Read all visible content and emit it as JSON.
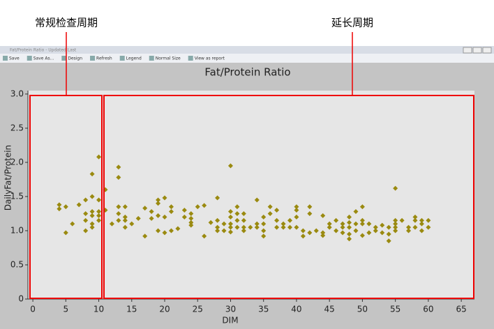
{
  "annotations": [
    "常规检查周期",
    "延长周期"
  ],
  "ui": {
    "window_title": "Fat/Protein Ratio - Updated Last",
    "toolbar": [
      "Save",
      "Save As...",
      "Design",
      "Refresh",
      "Legend",
      "Normal Size",
      "View as report"
    ]
  },
  "chart_data": {
    "type": "scatter",
    "title": "Fat/Protein Ratio",
    "x_label": "DIM",
    "y_label": "DailyFat/Protein",
    "color": "#9a8a10",
    "x": [
      4,
      4,
      5,
      5,
      6,
      7,
      8,
      8,
      8,
      8,
      9,
      9,
      9,
      9,
      9,
      9,
      10,
      10,
      10,
      10,
      10,
      11,
      11,
      12,
      13,
      13,
      13,
      13,
      13,
      14,
      14,
      14,
      14,
      15,
      16,
      17,
      17,
      18,
      18,
      19,
      19,
      19,
      19,
      20,
      20,
      20,
      21,
      21,
      21,
      22,
      23,
      23,
      24,
      24,
      24,
      24,
      25,
      26,
      26,
      27,
      28,
      28,
      28,
      28,
      29,
      29,
      30,
      30,
      30,
      30,
      30,
      30,
      31,
      31,
      31,
      31,
      32,
      32,
      32,
      32,
      33,
      34,
      34,
      34,
      35,
      35,
      35,
      35,
      36,
      36,
      37,
      37,
      37,
      38,
      38,
      39,
      39,
      40,
      40,
      40,
      40,
      41,
      41,
      42,
      42,
      42,
      43,
      44,
      44,
      44,
      45,
      45,
      46,
      46,
      47,
      47,
      47,
      48,
      48,
      48,
      48,
      48,
      49,
      49,
      49,
      50,
      50,
      50,
      50,
      51,
      51,
      52,
      52,
      53,
      53,
      54,
      54,
      54,
      55,
      55,
      55,
      55,
      55,
      56,
      57,
      57,
      58,
      58,
      58,
      59,
      59,
      59,
      60,
      60
    ],
    "y": [
      1.38,
      1.32,
      1.35,
      0.97,
      1.1,
      1.38,
      1.45,
      1.25,
      1.15,
      1.0,
      1.5,
      1.28,
      1.22,
      1.1,
      1.05,
      1.83,
      2.08,
      1.45,
      1.28,
      1.22,
      1.15,
      1.6,
      1.3,
      1.1,
      1.93,
      1.78,
      1.35,
      1.25,
      1.15,
      1.35,
      1.2,
      1.15,
      1.05,
      1.1,
      1.18,
      1.33,
      0.92,
      1.28,
      1.18,
      1.45,
      1.4,
      1.22,
      1.0,
      1.48,
      1.2,
      0.97,
      1.35,
      1.28,
      1.0,
      1.03,
      1.2,
      1.3,
      1.25,
      1.18,
      1.12,
      1.08,
      1.35,
      1.37,
      0.92,
      1.12,
      1.48,
      1.15,
      1.05,
      1.0,
      1.1,
      1.0,
      1.95,
      1.28,
      1.2,
      1.1,
      1.05,
      0.98,
      1.35,
      1.25,
      1.15,
      1.05,
      1.25,
      1.15,
      1.05,
      1.0,
      1.05,
      1.45,
      1.1,
      1.05,
      1.2,
      1.1,
      0.92,
      1.0,
      1.35,
      1.25,
      1.3,
      1.15,
      1.05,
      1.1,
      1.05,
      1.15,
      1.05,
      1.35,
      1.3,
      1.2,
      1.05,
      1.0,
      0.92,
      1.25,
      1.35,
      0.97,
      1.0,
      1.22,
      0.93,
      0.97,
      1.1,
      1.05,
      1.15,
      1.0,
      1.1,
      1.05,
      0.97,
      1.2,
      1.12,
      1.05,
      0.95,
      0.88,
      1.28,
      1.1,
      1.0,
      1.35,
      1.15,
      1.1,
      0.93,
      1.1,
      0.97,
      1.05,
      1.0,
      1.08,
      0.97,
      1.05,
      0.95,
      0.85,
      1.62,
      1.15,
      1.1,
      1.05,
      1.0,
      1.15,
      1.05,
      1.0,
      1.2,
      1.15,
      1.05,
      1.15,
      1.1,
      1.0,
      1.15,
      1.05
    ],
    "xlim": [
      -0.75,
      67
    ],
    "ylim": [
      0,
      3.05
    ],
    "xticks": [
      0,
      5,
      10,
      15,
      20,
      25,
      30,
      35,
      40,
      45,
      50,
      55,
      60,
      65
    ],
    "yticks": [
      0,
      {
        "value": 0.5,
        "label": "0.5"
      },
      {
        "value": 1,
        "label": "1.0"
      },
      {
        "value": 1.5,
        "label": "1.5"
      },
      {
        "value": 2,
        "label": "2.0"
      },
      {
        "value": 2.5,
        "label": "2.5"
      },
      {
        "value": 3,
        "label": "3.0"
      }
    ],
    "grid": false
  }
}
